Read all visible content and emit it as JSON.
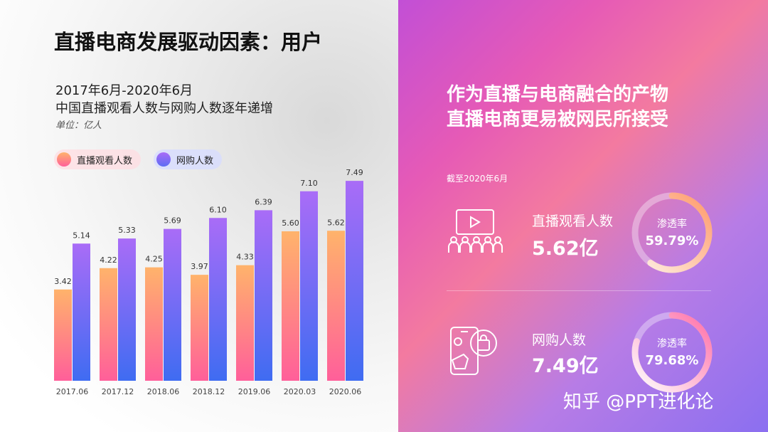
{
  "title": "直播电商发展驱动因素：用户",
  "subtitle_line1": "2017年6月-2020年6月",
  "subtitle_line2": "中国直播观看人数与网购人数逐年递增",
  "unit": "单位：亿人",
  "legend": {
    "series1": "直播观看人数",
    "series2": "网购人数"
  },
  "chart_data": {
    "type": "bar",
    "categories": [
      "2017.06",
      "2017.12",
      "2018.06",
      "2018.12",
      "2019.06",
      "2020.03",
      "2020.06"
    ],
    "series": [
      {
        "name": "直播观看人数",
        "values": [
          3.42,
          4.22,
          4.25,
          3.97,
          4.33,
          5.6,
          5.62
        ]
      },
      {
        "name": "网购人数",
        "values": [
          5.14,
          5.33,
          5.69,
          6.1,
          6.39,
          7.1,
          7.49
        ]
      }
    ],
    "ylim": [
      0,
      8
    ],
    "colors": {
      "series1_top": "#ffb36b",
      "series1_bottom": "#ff5f9a",
      "series2_top": "#a96cf7",
      "series2_bottom": "#3f6cf2"
    }
  },
  "right": {
    "headline1": "作为直播与电商融合的产物",
    "headline2": "直播电商更易被网民所接受",
    "as_of": "截至2020年6月",
    "stats": [
      {
        "label": "直播观看人数",
        "value": "5.62亿",
        "ring_label": "渗透率",
        "ring_value": "59.79%",
        "percent": 59.79,
        "icon": "audience-video-icon"
      },
      {
        "label": "网购人数",
        "value": "7.49亿",
        "ring_label": "渗透率",
        "ring_value": "79.68%",
        "percent": 79.68,
        "icon": "phone-shopping-icon"
      }
    ]
  },
  "watermark": "知乎 @PPT进化论"
}
